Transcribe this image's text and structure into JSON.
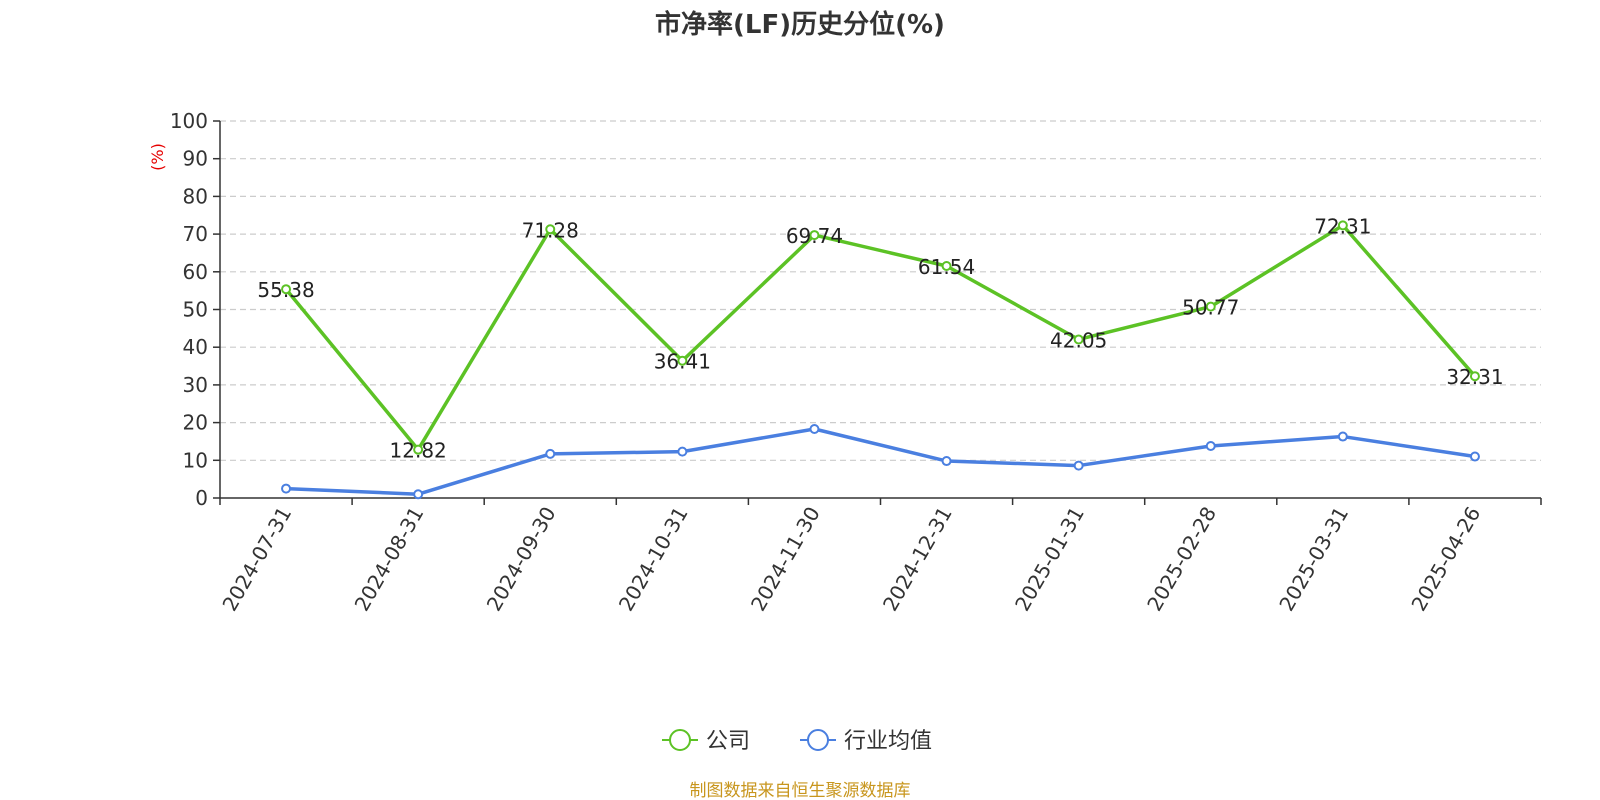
{
  "chart_data": {
    "type": "line",
    "title": "市净率(LF)历史分位(%)",
    "ylabel": "(%)",
    "ylim": [
      0,
      100
    ],
    "yticks": [
      0,
      10,
      20,
      30,
      40,
      50,
      60,
      70,
      80,
      90,
      100
    ],
    "grid": true,
    "legend_position": "bottom",
    "categories": [
      "2024-07-31",
      "2024-08-31",
      "2024-09-30",
      "2024-10-31",
      "2024-11-30",
      "2024-12-31",
      "2025-01-31",
      "2025-02-28",
      "2025-03-31",
      "2025-04-26"
    ],
    "series": [
      {
        "name": "公司",
        "color": "#5cc225",
        "show_labels": true,
        "values": [
          55.38,
          12.82,
          71.28,
          36.41,
          69.74,
          61.54,
          42.05,
          50.77,
          72.31,
          32.31
        ],
        "labels": [
          "55.38",
          "12.82",
          "71.28",
          "36.41",
          "69.74",
          "61.54",
          "42.05",
          "50.77",
          "72.31",
          "32.31"
        ]
      },
      {
        "name": "行业均值",
        "color": "#4a7fe0",
        "show_labels": false,
        "values": [
          2.5,
          1.0,
          11.7,
          12.3,
          18.3,
          9.8,
          8.6,
          13.8,
          16.3,
          11.0
        ]
      }
    ],
    "colors": {
      "axis": "#333333",
      "grid": "#cccccc",
      "unit_label": "#e60000"
    }
  },
  "footer": {
    "source": "制图数据来自恒生聚源数据库",
    "source_color": "#c8961e"
  }
}
